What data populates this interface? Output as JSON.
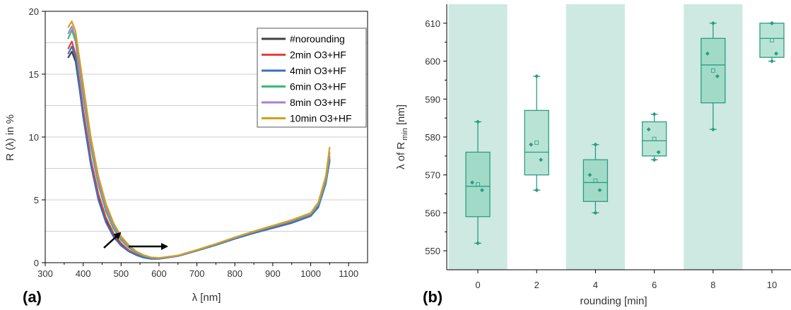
{
  "chart_data": [
    {
      "panel": "(a)",
      "type": "line",
      "xlabel": "λ [nm]",
      "ylabel": "R (λ) in %",
      "xlim": [
        300,
        1150
      ],
      "ylim": [
        0,
        20
      ],
      "xticks": [
        300,
        400,
        500,
        600,
        700,
        800,
        900,
        1000,
        1100
      ],
      "yticks": [
        0,
        5,
        10,
        15,
        20
      ],
      "grid": "horizontal",
      "legend_position": "top-right",
      "series": [
        {
          "name": "#norounding",
          "color": "#404040",
          "x": [
            360,
            370,
            380,
            400,
            420,
            440,
            460,
            480,
            500,
            520,
            540,
            560,
            580,
            600,
            650,
            700,
            750,
            800,
            850,
            900,
            950,
            1000,
            1020,
            1040,
            1050
          ],
          "y": [
            16.3,
            16.8,
            16.0,
            11.8,
            8.0,
            5.2,
            3.4,
            2.2,
            1.45,
            0.95,
            0.62,
            0.42,
            0.32,
            0.32,
            0.55,
            0.98,
            1.45,
            1.95,
            2.4,
            2.85,
            3.25,
            3.8,
            4.5,
            6.4,
            8.2
          ]
        },
        {
          "name": "2min O3+HF",
          "color": "#e8403c",
          "x": [
            360,
            370,
            380,
            400,
            420,
            440,
            460,
            480,
            500,
            520,
            540,
            560,
            580,
            600,
            650,
            700,
            750,
            800,
            850,
            900,
            950,
            1000,
            1020,
            1040,
            1050
          ],
          "y": [
            17.0,
            17.6,
            16.6,
            12.2,
            8.3,
            5.5,
            3.6,
            2.35,
            1.55,
            1.0,
            0.66,
            0.44,
            0.33,
            0.33,
            0.55,
            0.98,
            1.45,
            1.95,
            2.4,
            2.85,
            3.25,
            3.8,
            4.5,
            6.4,
            8.3
          ]
        },
        {
          "name": "4min O3+HF",
          "color": "#3b6fc6",
          "x": [
            360,
            370,
            380,
            400,
            420,
            440,
            460,
            480,
            500,
            520,
            540,
            560,
            580,
            600,
            650,
            700,
            750,
            800,
            850,
            900,
            950,
            1000,
            1020,
            1040,
            1050
          ],
          "y": [
            16.6,
            17.2,
            16.3,
            11.6,
            7.8,
            5.0,
            3.2,
            2.05,
            1.35,
            0.9,
            0.6,
            0.4,
            0.3,
            0.3,
            0.52,
            0.95,
            1.4,
            1.9,
            2.35,
            2.75,
            3.15,
            3.7,
            4.4,
            6.3,
            8.1
          ]
        },
        {
          "name": "6min O3+HF",
          "color": "#3cb878",
          "x": [
            360,
            370,
            380,
            400,
            420,
            440,
            460,
            480,
            500,
            520,
            540,
            560,
            580,
            600,
            650,
            700,
            750,
            800,
            850,
            900,
            950,
            1000,
            1020,
            1040,
            1050
          ],
          "y": [
            17.8,
            18.5,
            17.6,
            13.2,
            9.2,
            6.2,
            4.1,
            2.7,
            1.8,
            1.2,
            0.78,
            0.52,
            0.38,
            0.35,
            0.56,
            1.0,
            1.47,
            1.98,
            2.45,
            2.9,
            3.3,
            3.85,
            4.6,
            6.5,
            8.5
          ]
        },
        {
          "name": "8min O3+HF",
          "color": "#a77fd6",
          "x": [
            360,
            370,
            380,
            400,
            420,
            440,
            460,
            480,
            500,
            520,
            540,
            560,
            580,
            600,
            650,
            700,
            750,
            800,
            850,
            900,
            950,
            1000,
            1020,
            1040,
            1050
          ],
          "y": [
            18.2,
            18.8,
            17.9,
            13.6,
            9.6,
            6.5,
            4.4,
            2.95,
            1.95,
            1.3,
            0.85,
            0.56,
            0.4,
            0.36,
            0.56,
            1.0,
            1.48,
            2.0,
            2.48,
            2.92,
            3.35,
            3.9,
            4.7,
            6.7,
            8.8
          ]
        },
        {
          "name": "10min O3+HF",
          "color": "#d4a017",
          "x": [
            360,
            370,
            380,
            400,
            420,
            440,
            460,
            480,
            500,
            520,
            540,
            560,
            580,
            600,
            650,
            700,
            750,
            800,
            850,
            900,
            950,
            1000,
            1020,
            1040,
            1050
          ],
          "y": [
            18.7,
            19.2,
            18.4,
            14.2,
            10.0,
            6.9,
            4.7,
            3.15,
            2.1,
            1.4,
            0.9,
            0.6,
            0.42,
            0.38,
            0.58,
            1.02,
            1.5,
            2.02,
            2.5,
            2.95,
            3.4,
            3.95,
            4.8,
            6.9,
            9.2
          ]
        }
      ]
    },
    {
      "panel": "(b)",
      "type": "box",
      "xlabel": "rounding [min]",
      "ylabel": "λ of R",
      "ylabel_subscript": "min",
      "ylabel_unit": "[nm]",
      "categories": [
        "0",
        "2",
        "4",
        "6",
        "8",
        "10"
      ],
      "ylim": [
        545,
        615
      ],
      "yticks": [
        550,
        560,
        570,
        580,
        590,
        600,
        610
      ],
      "shaded_bands": [
        "0",
        "4",
        "8"
      ],
      "colors": {
        "box_fill": "#7fcdb3",
        "line": "#2a9d80",
        "band": "#cde9e2"
      },
      "boxes": [
        {
          "category": "0",
          "whisker_low": 552,
          "q1": 559,
          "median": 567,
          "q3": 576,
          "whisker_high": 584,
          "mean": 567.5,
          "points": [
            552,
            566,
            568,
            584
          ]
        },
        {
          "category": "2",
          "whisker_low": 566,
          "q1": 570,
          "median": 576,
          "q3": 587,
          "whisker_high": 596,
          "mean": 578.5,
          "points": [
            566,
            574,
            578,
            596
          ]
        },
        {
          "category": "4",
          "whisker_low": 560,
          "q1": 563,
          "median": 568,
          "q3": 574,
          "whisker_high": 578,
          "mean": 568.5,
          "points": [
            560,
            566,
            570,
            578
          ]
        },
        {
          "category": "6",
          "whisker_low": 574,
          "q1": 575,
          "median": 579,
          "q3": 584,
          "whisker_high": 586,
          "mean": 579.5,
          "points": [
            574,
            576,
            582,
            586
          ]
        },
        {
          "category": "8",
          "whisker_low": 582,
          "q1": 589,
          "median": 599,
          "q3": 606,
          "whisker_high": 610,
          "mean": 597.5,
          "points": [
            582,
            596,
            602,
            610
          ]
        },
        {
          "category": "10",
          "whisker_low": 600,
          "q1": 601,
          "median": 606,
          "q3": 610,
          "whisker_high": 610,
          "mean": 605.5,
          "points": [
            600,
            602,
            610,
            610
          ]
        }
      ]
    }
  ]
}
